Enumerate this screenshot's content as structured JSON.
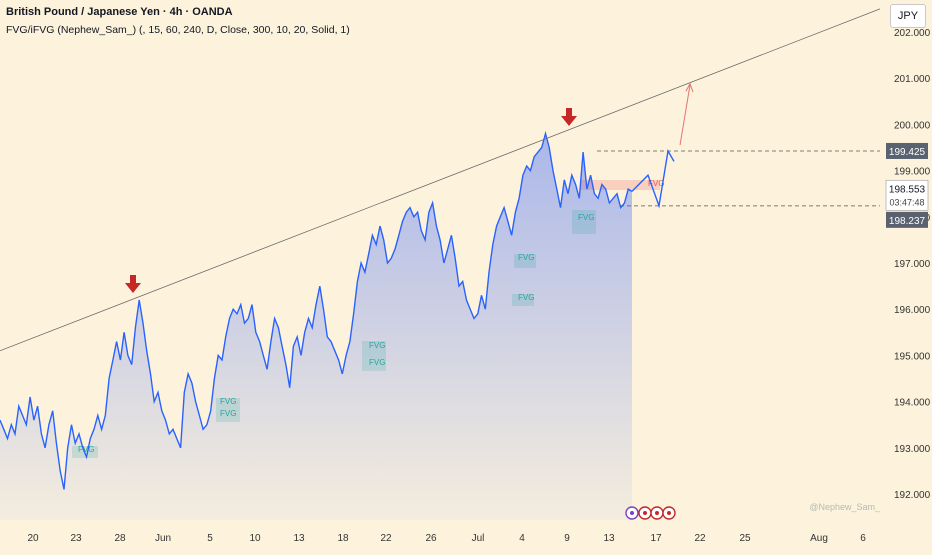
{
  "header": {
    "title": "British Pound / Japanese Yen · 4h · OANDA",
    "indicator": "FVG/iFVG (Nephew_Sam_) (, 15, 60, 240, D, Close, 300, 10, 20, Solid, 1)"
  },
  "currency_button": "JPY",
  "watermark": "@Nephew_Sam_",
  "price_labels": {
    "last": "199.425",
    "current": "198.553",
    "countdown": "03:47:48",
    "level": "198.237"
  },
  "fvg_label": "FVG",
  "colors": {
    "background": "#fdf3dc",
    "line": "#2962ff",
    "fill": "#8fa3ee",
    "trendline": "#6b6b6b",
    "arrow_marker": "#c62828",
    "fvg_bull": "#26a69a",
    "fvg_bear": "#ef5350",
    "projection": "#e57373"
  },
  "chart_data": {
    "type": "area",
    "title": "British Pound / Japanese Yen · 4h · OANDA",
    "xlabel": "",
    "ylabel": "",
    "ylim": [
      191.8,
      202.6
    ],
    "y_ticks": [
      "192.000",
      "193.000",
      "194.000",
      "195.000",
      "196.000",
      "197.000",
      "198.000",
      "199.000",
      "200.000",
      "201.000",
      "202.000"
    ],
    "x_ticks": [
      "20",
      "23",
      "28",
      "Jun",
      "5",
      "10",
      "13",
      "18",
      "22",
      "26",
      "Jul",
      "4",
      "9",
      "13",
      "17",
      "22",
      "25",
      "Aug",
      "6"
    ],
    "grid": false,
    "series": [
      {
        "values": [
          193.6,
          193.4,
          193.2,
          193.5,
          193.3,
          193.9,
          193.7,
          193.5,
          194.1,
          193.6,
          193.9,
          193.3,
          193.0,
          193.5,
          193.8,
          193.1,
          192.5,
          192.1,
          193.0,
          193.5,
          193.1,
          193.3,
          193.0,
          192.8,
          193.2,
          193.4,
          193.7,
          193.4,
          193.7,
          194.5,
          194.9,
          195.3,
          194.9,
          195.5,
          195.0,
          194.8,
          195.6,
          196.2,
          195.7,
          195.1,
          194.6,
          194.0,
          194.2,
          193.8,
          193.6,
          193.3,
          193.4,
          193.2,
          193.0,
          194.2,
          194.6,
          194.4,
          194.0,
          193.7,
          193.4,
          193.5,
          193.8,
          194.5,
          195.0,
          194.9,
          195.4,
          195.8,
          196.0,
          195.9,
          196.1,
          195.7,
          195.8,
          196.1,
          195.5,
          195.3,
          195.0,
          194.7,
          195.3,
          195.8,
          195.6,
          195.2,
          194.8,
          194.3,
          195.2,
          195.4,
          195.0,
          195.5,
          195.8,
          195.6,
          196.1,
          196.5,
          196.0,
          195.4,
          195.3,
          195.1,
          194.9,
          194.6,
          195.0,
          195.3,
          195.9,
          196.6,
          197.0,
          196.8,
          197.2,
          197.6,
          197.4,
          197.8,
          197.5,
          197.0,
          197.1,
          197.3,
          197.6,
          197.9,
          198.1,
          198.2,
          198.0,
          198.1,
          197.7,
          197.5,
          198.1,
          198.3,
          197.8,
          197.5,
          197.0,
          197.3,
          197.6,
          197.1,
          196.5,
          196.6,
          196.2,
          196.0,
          195.8,
          195.9,
          196.3,
          196.0,
          196.8,
          197.4,
          197.8,
          198.0,
          198.2,
          197.9,
          197.6,
          198.1,
          198.4,
          198.9,
          199.1,
          199.0,
          199.3,
          199.4,
          199.5,
          199.8,
          199.5,
          199.0,
          198.6,
          198.2,
          198.8,
          198.5,
          198.9,
          198.7,
          198.4,
          199.4,
          198.6,
          198.9,
          198.5,
          198.4,
          198.7,
          198.6,
          198.3,
          198.4,
          198.5,
          198.2,
          198.3,
          198.6,
          198.55
        ],
        "projection": [
          {
            "x": "Jul 13",
            "y": 198.55
          },
          {
            "x": "Jul 15",
            "y": 198.9
          },
          {
            "x": "Jul 16",
            "y": 198.237
          },
          {
            "x": "Jul 17",
            "y": 199.425
          },
          {
            "x": "Jul 18",
            "y": 199.2
          }
        ]
      }
    ],
    "trendline": {
      "from": 195.1,
      "to": 202.5
    },
    "markers": [
      "peak May 28",
      "peak Jul 9"
    ],
    "fvg_zones": [
      "FVG",
      "FVG",
      "FVG",
      "FVG",
      "FVG",
      "FVG",
      "FVG",
      "FVG",
      "FVG",
      "FVG"
    ]
  }
}
